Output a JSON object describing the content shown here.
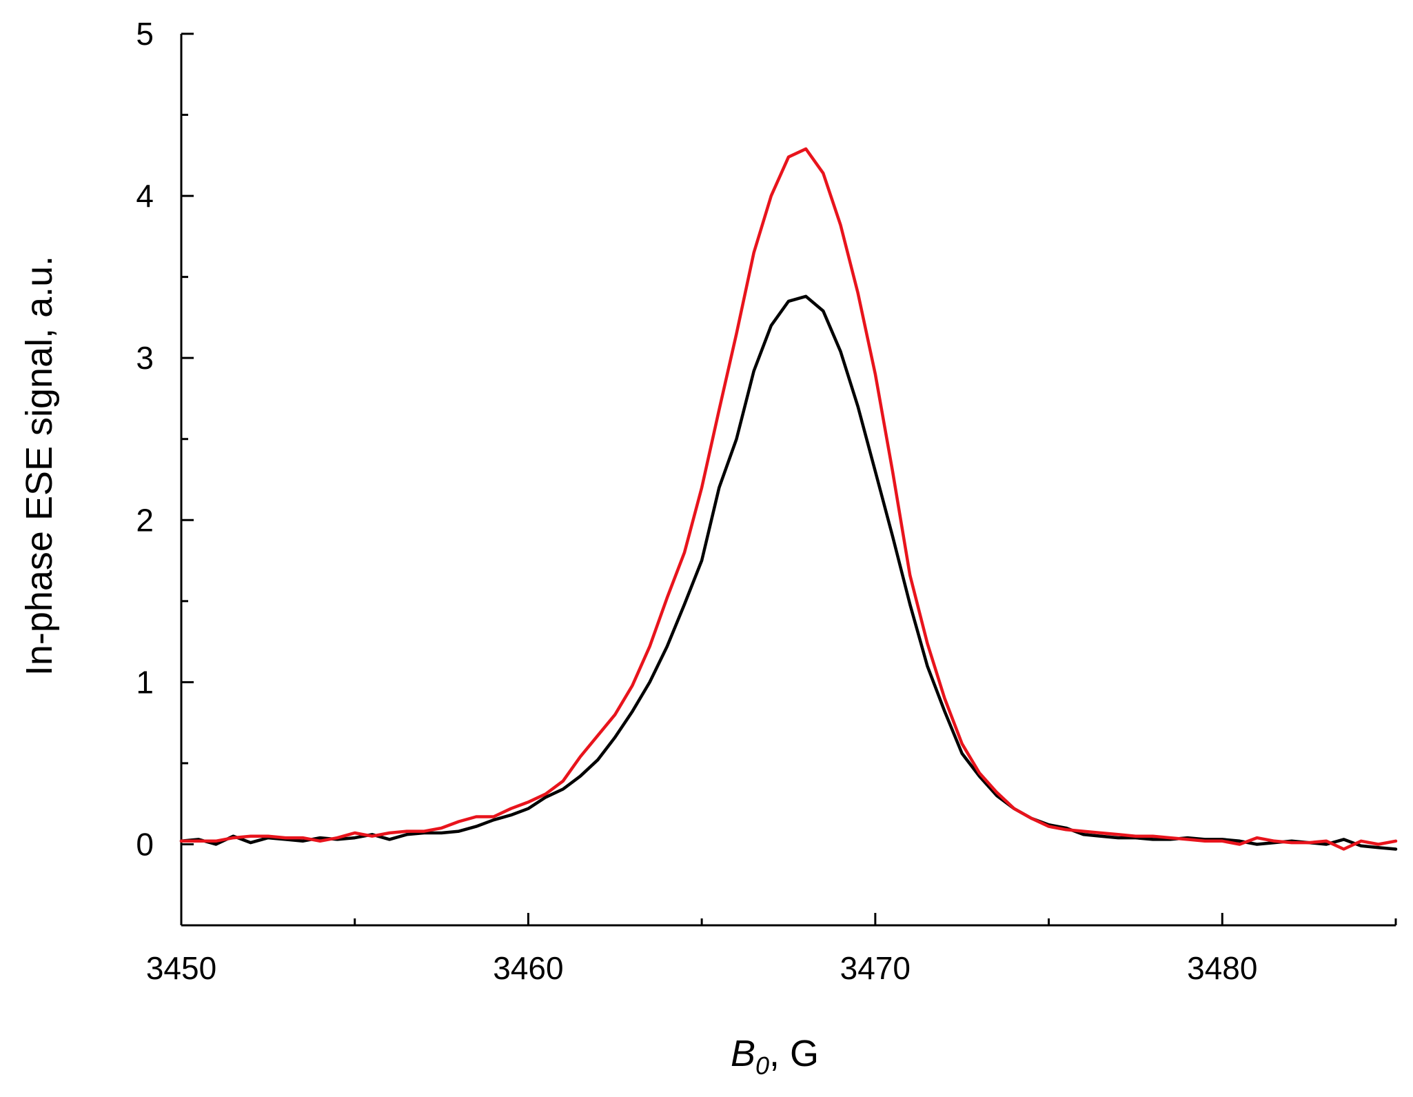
{
  "chart_data": {
    "type": "line",
    "title": "",
    "xlabel": {
      "symbol": "B",
      "subscript": "0",
      "suffix": ", G"
    },
    "ylabel": "In-phase ESE signal, a.u.",
    "xlim": [
      3450,
      3485
    ],
    "ylim": [
      -0.5,
      5
    ],
    "x_ticks": [
      3450,
      3460,
      3470,
      3480
    ],
    "y_ticks": [
      0,
      1,
      2,
      3,
      4,
      5
    ],
    "x_minor_step": 5,
    "y_minor_step": 0.5,
    "grid": false,
    "legend": "none",
    "series": [
      {
        "color": "#000000",
        "points": [
          [
            3450.0,
            0.02
          ],
          [
            3450.5,
            0.03
          ],
          [
            3451.0,
            0.0
          ],
          [
            3451.5,
            0.05
          ],
          [
            3452.0,
            0.01
          ],
          [
            3452.5,
            0.04
          ],
          [
            3453.0,
            0.03
          ],
          [
            3453.5,
            0.02
          ],
          [
            3454.0,
            0.04
          ],
          [
            3454.5,
            0.03
          ],
          [
            3455.0,
            0.04
          ],
          [
            3455.5,
            0.06
          ],
          [
            3456.0,
            0.03
          ],
          [
            3456.5,
            0.06
          ],
          [
            3457.0,
            0.07
          ],
          [
            3457.5,
            0.07
          ],
          [
            3458.0,
            0.08
          ],
          [
            3458.5,
            0.11
          ],
          [
            3459.0,
            0.15
          ],
          [
            3459.5,
            0.18
          ],
          [
            3460.0,
            0.22
          ],
          [
            3460.5,
            0.29
          ],
          [
            3461.0,
            0.34
          ],
          [
            3461.5,
            0.42
          ],
          [
            3462.0,
            0.52
          ],
          [
            3462.5,
            0.66
          ],
          [
            3463.0,
            0.82
          ],
          [
            3463.5,
            1.0
          ],
          [
            3464.0,
            1.22
          ],
          [
            3464.5,
            1.48
          ],
          [
            3465.0,
            1.75
          ],
          [
            3465.5,
            2.2
          ],
          [
            3466.0,
            2.5
          ],
          [
            3466.5,
            2.92
          ],
          [
            3467.0,
            3.2
          ],
          [
            3467.5,
            3.35
          ],
          [
            3468.0,
            3.38
          ],
          [
            3468.5,
            3.29
          ],
          [
            3469.0,
            3.04
          ],
          [
            3469.5,
            2.7
          ],
          [
            3470.0,
            2.3
          ],
          [
            3470.5,
            1.9
          ],
          [
            3471.0,
            1.48
          ],
          [
            3471.5,
            1.1
          ],
          [
            3472.0,
            0.82
          ],
          [
            3472.5,
            0.56
          ],
          [
            3473.0,
            0.42
          ],
          [
            3473.5,
            0.3
          ],
          [
            3474.0,
            0.22
          ],
          [
            3474.5,
            0.16
          ],
          [
            3475.0,
            0.12
          ],
          [
            3475.5,
            0.1
          ],
          [
            3476.0,
            0.06
          ],
          [
            3476.5,
            0.05
          ],
          [
            3477.0,
            0.04
          ],
          [
            3477.5,
            0.04
          ],
          [
            3478.0,
            0.03
          ],
          [
            3478.5,
            0.03
          ],
          [
            3479.0,
            0.04
          ],
          [
            3479.5,
            0.03
          ],
          [
            3480.0,
            0.03
          ],
          [
            3480.5,
            0.02
          ],
          [
            3481.0,
            0.0
          ],
          [
            3481.5,
            0.01
          ],
          [
            3482.0,
            0.02
          ],
          [
            3482.5,
            0.01
          ],
          [
            3483.0,
            0.0
          ],
          [
            3483.5,
            0.03
          ],
          [
            3484.0,
            -0.01
          ],
          [
            3484.5,
            -0.02
          ],
          [
            3485.0,
            -0.03
          ]
        ]
      },
      {
        "color": "#e8141c",
        "points": [
          [
            3450.0,
            0.02
          ],
          [
            3450.5,
            0.02
          ],
          [
            3451.0,
            0.02
          ],
          [
            3451.5,
            0.04
          ],
          [
            3452.0,
            0.05
          ],
          [
            3452.5,
            0.05
          ],
          [
            3453.0,
            0.04
          ],
          [
            3453.5,
            0.04
          ],
          [
            3454.0,
            0.02
          ],
          [
            3454.5,
            0.04
          ],
          [
            3455.0,
            0.07
          ],
          [
            3455.5,
            0.05
          ],
          [
            3456.0,
            0.07
          ],
          [
            3456.5,
            0.08
          ],
          [
            3457.0,
            0.08
          ],
          [
            3457.5,
            0.1
          ],
          [
            3458.0,
            0.14
          ],
          [
            3458.5,
            0.17
          ],
          [
            3459.0,
            0.17
          ],
          [
            3459.5,
            0.22
          ],
          [
            3460.0,
            0.26
          ],
          [
            3460.5,
            0.31
          ],
          [
            3461.0,
            0.39
          ],
          [
            3461.5,
            0.54
          ],
          [
            3462.0,
            0.67
          ],
          [
            3462.5,
            0.8
          ],
          [
            3463.0,
            0.98
          ],
          [
            3463.5,
            1.22
          ],
          [
            3464.0,
            1.52
          ],
          [
            3464.5,
            1.8
          ],
          [
            3465.0,
            2.2
          ],
          [
            3465.5,
            2.68
          ],
          [
            3466.0,
            3.15
          ],
          [
            3466.5,
            3.65
          ],
          [
            3467.0,
            4.0
          ],
          [
            3467.5,
            4.24
          ],
          [
            3468.0,
            4.29
          ],
          [
            3468.5,
            4.14
          ],
          [
            3469.0,
            3.82
          ],
          [
            3469.5,
            3.4
          ],
          [
            3470.0,
            2.9
          ],
          [
            3470.5,
            2.3
          ],
          [
            3471.0,
            1.66
          ],
          [
            3471.5,
            1.24
          ],
          [
            3472.0,
            0.9
          ],
          [
            3472.5,
            0.62
          ],
          [
            3473.0,
            0.44
          ],
          [
            3473.5,
            0.32
          ],
          [
            3474.0,
            0.22
          ],
          [
            3474.5,
            0.16
          ],
          [
            3475.0,
            0.11
          ],
          [
            3475.5,
            0.09
          ],
          [
            3476.0,
            0.08
          ],
          [
            3476.5,
            0.07
          ],
          [
            3477.0,
            0.06
          ],
          [
            3477.5,
            0.05
          ],
          [
            3478.0,
            0.05
          ],
          [
            3478.5,
            0.04
          ],
          [
            3479.0,
            0.03
          ],
          [
            3479.5,
            0.02
          ],
          [
            3480.0,
            0.02
          ],
          [
            3480.5,
            0.0
          ],
          [
            3481.0,
            0.04
          ],
          [
            3481.5,
            0.02
          ],
          [
            3482.0,
            0.01
          ],
          [
            3482.5,
            0.01
          ],
          [
            3483.0,
            0.02
          ],
          [
            3483.5,
            -0.03
          ],
          [
            3484.0,
            0.02
          ],
          [
            3484.5,
            0.0
          ],
          [
            3485.0,
            0.02
          ]
        ]
      }
    ]
  }
}
